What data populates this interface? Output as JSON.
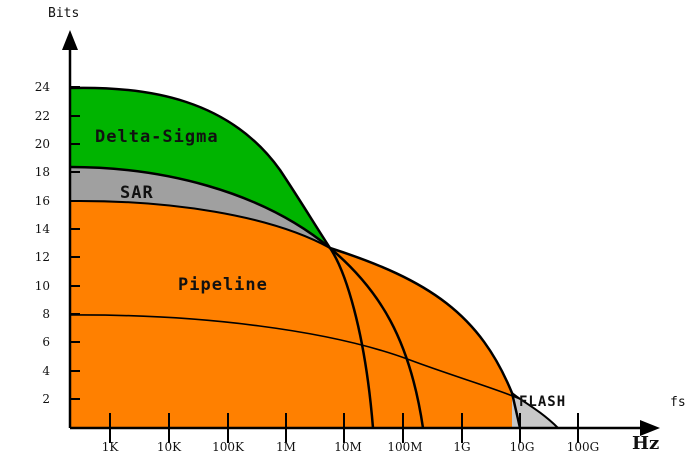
{
  "chart_data": {
    "type": "area",
    "y_unit": "Bits",
    "x_unit_top": "fs",
    "x_unit_bottom": "Hz",
    "y_ticks": [
      "2",
      "4",
      "6",
      "8",
      "10",
      "12",
      "14",
      "16",
      "18",
      "20",
      "22",
      "24"
    ],
    "x_ticks": [
      "1K",
      "10K",
      "100K",
      "1M",
      "10M",
      "100M",
      "1G",
      "10G",
      "100G"
    ],
    "regions": [
      {
        "name": "Delta-Sigma",
        "color": "#00b400",
        "max_bits": 24
      },
      {
        "name": "SAR",
        "color": "#a0a0a0",
        "max_bits": 18.5
      },
      {
        "name": "Pipeline",
        "color": "#ff8000",
        "max_bits": 16
      },
      {
        "name": "FLASH",
        "color": "#c0c0c0",
        "max_bits": 2
      }
    ],
    "reference_curve_start_bits": 8
  }
}
